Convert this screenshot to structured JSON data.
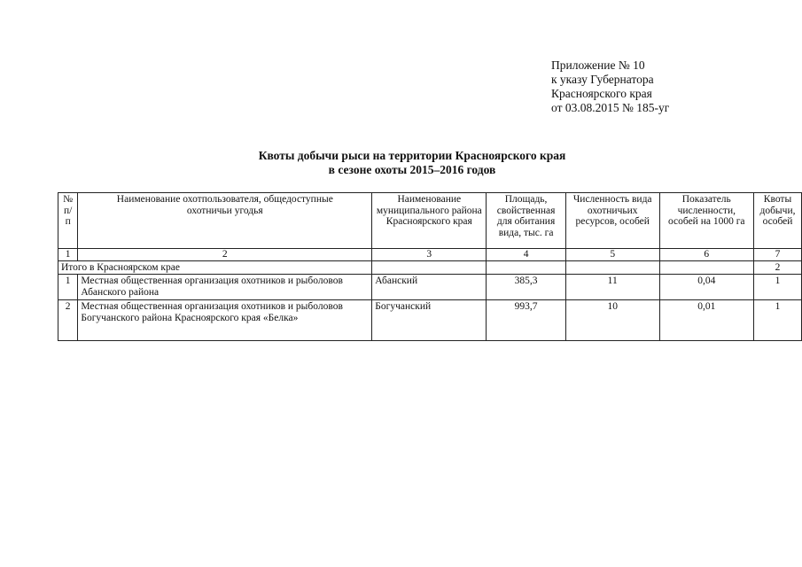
{
  "appendix": [
    "Приложение № 10",
    "к указу Губернатора",
    "Красноярского края",
    "от 03.08.2015 № 185-уг"
  ],
  "title": [
    "Квоты добычи рыси на территории Красноярского края",
    "в сезоне охоты 2015–2016 годов"
  ],
  "table": {
    "headers": [
      "№ п/п",
      "Наименование охотпользователя, общедоступные охотничьи угодья",
      "Наименование муниципального района Красноярского края",
      "Площадь, свойственная для обитания вида, тыс. га",
      "Численность вида охотничьих ресурсов, особей",
      "Показатель численности, особей на 1000 га",
      "Квоты добычи, особей"
    ],
    "column_numbers": [
      "1",
      "2",
      "3",
      "4",
      "5",
      "6",
      "7"
    ],
    "total": {
      "label": "Итого в Красноярском крае",
      "quota": "2"
    },
    "rows": [
      [
        "1",
        "Местная общественная организация охотников и рыболовов Абанского района",
        "Абанский",
        "385,3",
        "11",
        "0,04",
        "1"
      ],
      [
        "2",
        "Местная общественная организация охотников и рыболовов Богучанского района Красноярского края «Белка»",
        "Богучанский",
        "993,7",
        "10",
        "0,01",
        "1"
      ]
    ]
  }
}
